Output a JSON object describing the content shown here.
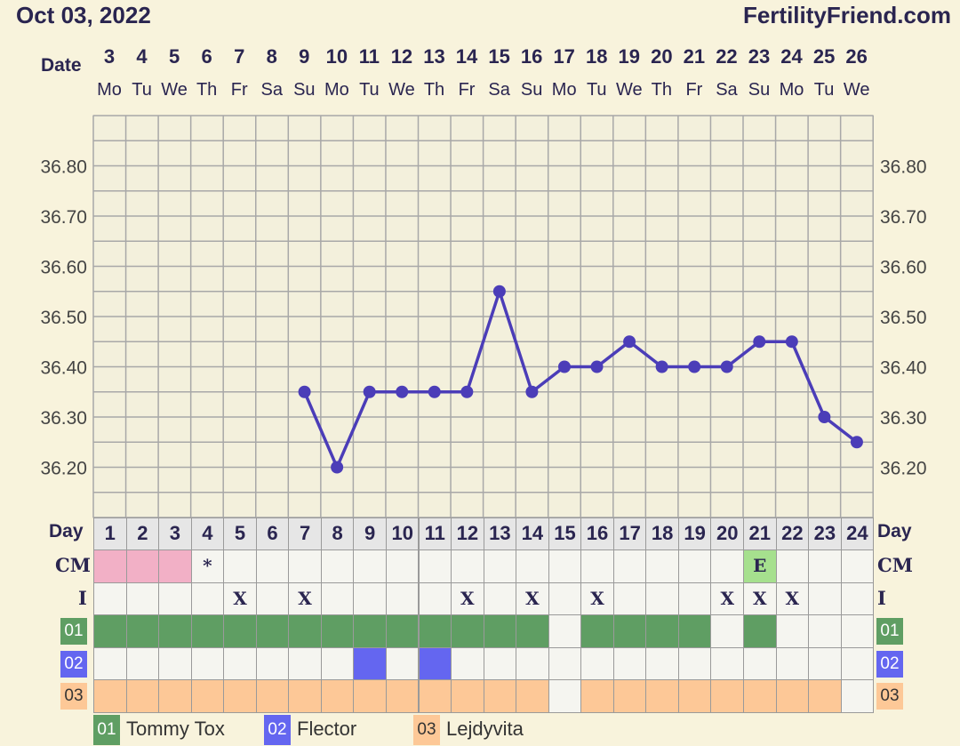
{
  "header": {
    "date": "Oct 03, 2022",
    "brand": "FertilityFriend.com",
    "date_label": "Date",
    "day_label": "Day",
    "cm_label": "CM",
    "i_label": "I"
  },
  "dates": [
    "3",
    "4",
    "5",
    "6",
    "7",
    "8",
    "9",
    "10",
    "11",
    "12",
    "13",
    "14",
    "15",
    "16",
    "17",
    "18",
    "19",
    "20",
    "21",
    "22",
    "23",
    "24",
    "25",
    "26"
  ],
  "weekdays": [
    "Mo",
    "Tu",
    "We",
    "Th",
    "Fr",
    "Sa",
    "Su",
    "Mo",
    "Tu",
    "We",
    "Th",
    "Fr",
    "Sa",
    "Su",
    "Mo",
    "Tu",
    "We",
    "Th",
    "Fr",
    "Sa",
    "Su",
    "Mo",
    "Tu",
    "We"
  ],
  "chart_data": {
    "type": "line",
    "x": [
      1,
      2,
      3,
      4,
      5,
      6,
      7,
      8,
      9,
      10,
      11,
      12,
      13,
      14,
      15,
      16,
      17,
      18,
      19,
      20,
      21,
      22,
      23,
      24
    ],
    "y": [
      null,
      null,
      null,
      null,
      null,
      null,
      36.35,
      36.2,
      36.35,
      36.35,
      36.35,
      36.35,
      36.55,
      36.35,
      36.4,
      36.4,
      36.45,
      36.4,
      36.4,
      36.4,
      36.45,
      36.45,
      36.3,
      36.25
    ],
    "ylim": [
      36.1,
      36.9
    ],
    "yticks": [
      "36.80",
      "36.70",
      "36.60",
      "36.50",
      "36.40",
      "36.30",
      "36.20"
    ],
    "grid": true,
    "line_color": "#4b3db8"
  },
  "cm": {
    "values": [
      "pink",
      "pink",
      "pink",
      "*",
      "",
      "",
      "",
      "",
      "",
      "",
      "",
      "",
      "",
      "",
      "",
      "",
      "",
      "",
      "",
      "",
      "E",
      "",
      "",
      " "
    ],
    "colors": {
      "pink": "#f2b0c6",
      "E": "#a6e08e"
    }
  },
  "intercourse": [
    "",
    "",
    "",
    "",
    "X",
    "",
    "X",
    "",
    "",
    "",
    "",
    "X",
    "",
    "X",
    "",
    "X",
    "",
    "",
    "",
    "X",
    "X",
    "X",
    "",
    ""
  ],
  "meds": [
    {
      "code": "01",
      "name": "Tommy Tox",
      "color": "#5f9e63",
      "days": [
        1,
        1,
        1,
        1,
        1,
        1,
        1,
        1,
        1,
        1,
        1,
        1,
        1,
        1,
        0,
        1,
        1,
        1,
        1,
        0,
        1,
        0,
        0,
        0
      ]
    },
    {
      "code": "02",
      "name": "Flector",
      "color": "#6466f0",
      "days": [
        0,
        0,
        0,
        0,
        0,
        0,
        0,
        0,
        1,
        0,
        1,
        0,
        0,
        0,
        0,
        0,
        0,
        0,
        0,
        0,
        0,
        0,
        0,
        0
      ]
    },
    {
      "code": "03",
      "name": "Lejdyvita",
      "color": "#fdc897",
      "days": [
        1,
        1,
        1,
        1,
        1,
        1,
        1,
        1,
        1,
        1,
        1,
        1,
        1,
        1,
        0,
        1,
        1,
        1,
        1,
        1,
        1,
        1,
        1,
        0
      ]
    }
  ]
}
